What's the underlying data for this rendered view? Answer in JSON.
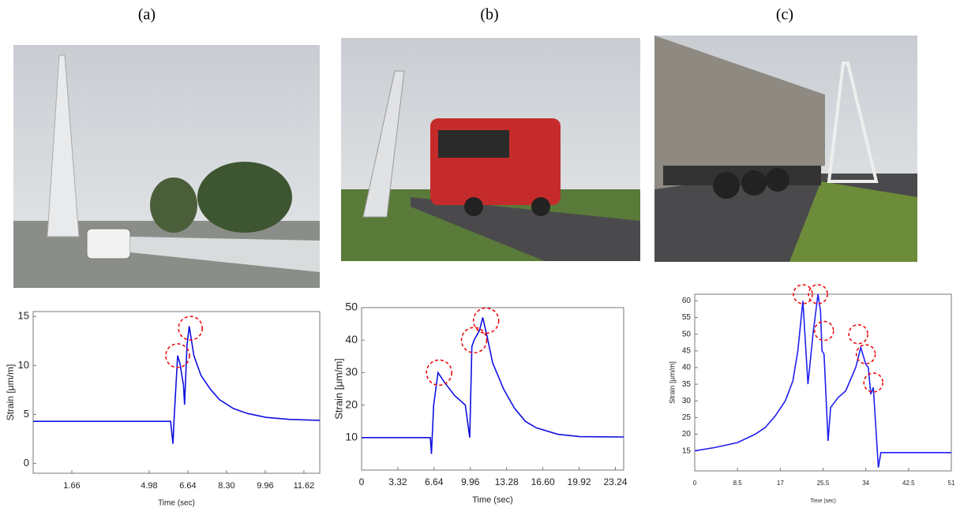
{
  "panel_labels": [
    "(a)",
    "(b)",
    "(c)"
  ],
  "chart_data": [
    {
      "type": "line",
      "x_label": "Time (sec)",
      "y_label": "Strain [μm/m]",
      "xlim": [
        0,
        12.3
      ],
      "ylim": [
        -1,
        15.5
      ],
      "xticks": [
        1.66,
        4.98,
        6.64,
        {
          "value": 8.3,
          "label": "8.30"
        },
        9.96,
        11.62
      ],
      "yticks": [
        0,
        5,
        10,
        15
      ],
      "series": [
        {
          "color": "#1010e0",
          "x": [
            0,
            2,
            4,
            5.9,
            6.0,
            6.05,
            6.2,
            6.3,
            6.45,
            6.5,
            6.6,
            6.7,
            6.9,
            7.2,
            7.6,
            8.0,
            8.6,
            9.2,
            10,
            11,
            12.3
          ],
          "values": [
            4.3,
            4.3,
            4.3,
            4.3,
            2.0,
            4.5,
            11,
            10.2,
            8,
            6,
            12,
            14,
            11,
            9,
            7.6,
            6.5,
            5.6,
            5.1,
            4.7,
            4.5,
            4.4
          ]
        }
      ],
      "annotations": [
        {
          "x": 6.2,
          "y": 11
        },
        {
          "x": 6.75,
          "y": 13.8
        }
      ]
    },
    {
      "type": "line",
      "x_label": "Time (sec)",
      "y_label": "Strain [μm/m]",
      "xlim": [
        0,
        24
      ],
      "ylim": [
        0,
        50
      ],
      "xticks": [
        0,
        3.32,
        6.64,
        9.96,
        13.28,
        {
          "value": 16.6,
          "label": "16.60"
        },
        19.92,
        23.24
      ],
      "yticks": [
        10,
        20,
        30,
        40,
        50
      ],
      "series": [
        {
          "color": "#1010e0",
          "x": [
            0,
            3,
            6.3,
            6.4,
            6.6,
            7.0,
            7.6,
            8.5,
            9.5,
            9.9,
            10.1,
            10.3,
            10.8,
            11.1,
            11.5,
            12,
            13,
            14,
            15,
            16,
            18,
            20,
            24
          ],
          "values": [
            10,
            10,
            10,
            5,
            20,
            30,
            27,
            23,
            20,
            10,
            38,
            40,
            43,
            47,
            41,
            33,
            25,
            19,
            15,
            13,
            11,
            10.3,
            10.2
          ]
        }
      ],
      "annotations": [
        {
          "x": 7.1,
          "y": 30
        },
        {
          "x": 10.3,
          "y": 40
        },
        {
          "x": 11.4,
          "y": 46
        }
      ]
    },
    {
      "type": "line",
      "x_label": "Time (sec)",
      "y_label": "Strain [μm/m]",
      "xlim": [
        0,
        51
      ],
      "ylim": [
        9,
        62
      ],
      "xticks": [
        0,
        8.5,
        17,
        25.5,
        34,
        42.5,
        51
      ],
      "yticks": [
        15,
        20,
        25,
        30,
        35,
        40,
        45,
        50,
        55,
        60
      ],
      "series": [
        {
          "color": "#2020f0",
          "x": [
            0,
            4,
            8.5,
            12,
            14,
            16,
            18,
            19.5,
            20.5,
            21.5,
            22.5,
            23.5,
            24.5,
            25,
            25.3,
            25.7,
            26.5,
            27,
            28.5,
            30,
            32,
            33,
            34,
            34.5,
            35,
            35.5,
            36.5,
            37,
            51
          ],
          "values": [
            15,
            16,
            17.5,
            20,
            22,
            25.5,
            30,
            36,
            45,
            60,
            35,
            50,
            62,
            57,
            45,
            44,
            18,
            28,
            31,
            33,
            40,
            46,
            41,
            40,
            32,
            34,
            10,
            14.5,
            14.5
          ]
        }
      ],
      "annotations": [
        {
          "x": 21.5,
          "y": 62
        },
        {
          "x": 24.5,
          "y": 62
        },
        {
          "x": 25.7,
          "y": 51
        },
        {
          "x": 32.5,
          "y": 50
        },
        {
          "x": 34,
          "y": 44
        },
        {
          "x": 35.5,
          "y": 35.5
        }
      ]
    }
  ]
}
